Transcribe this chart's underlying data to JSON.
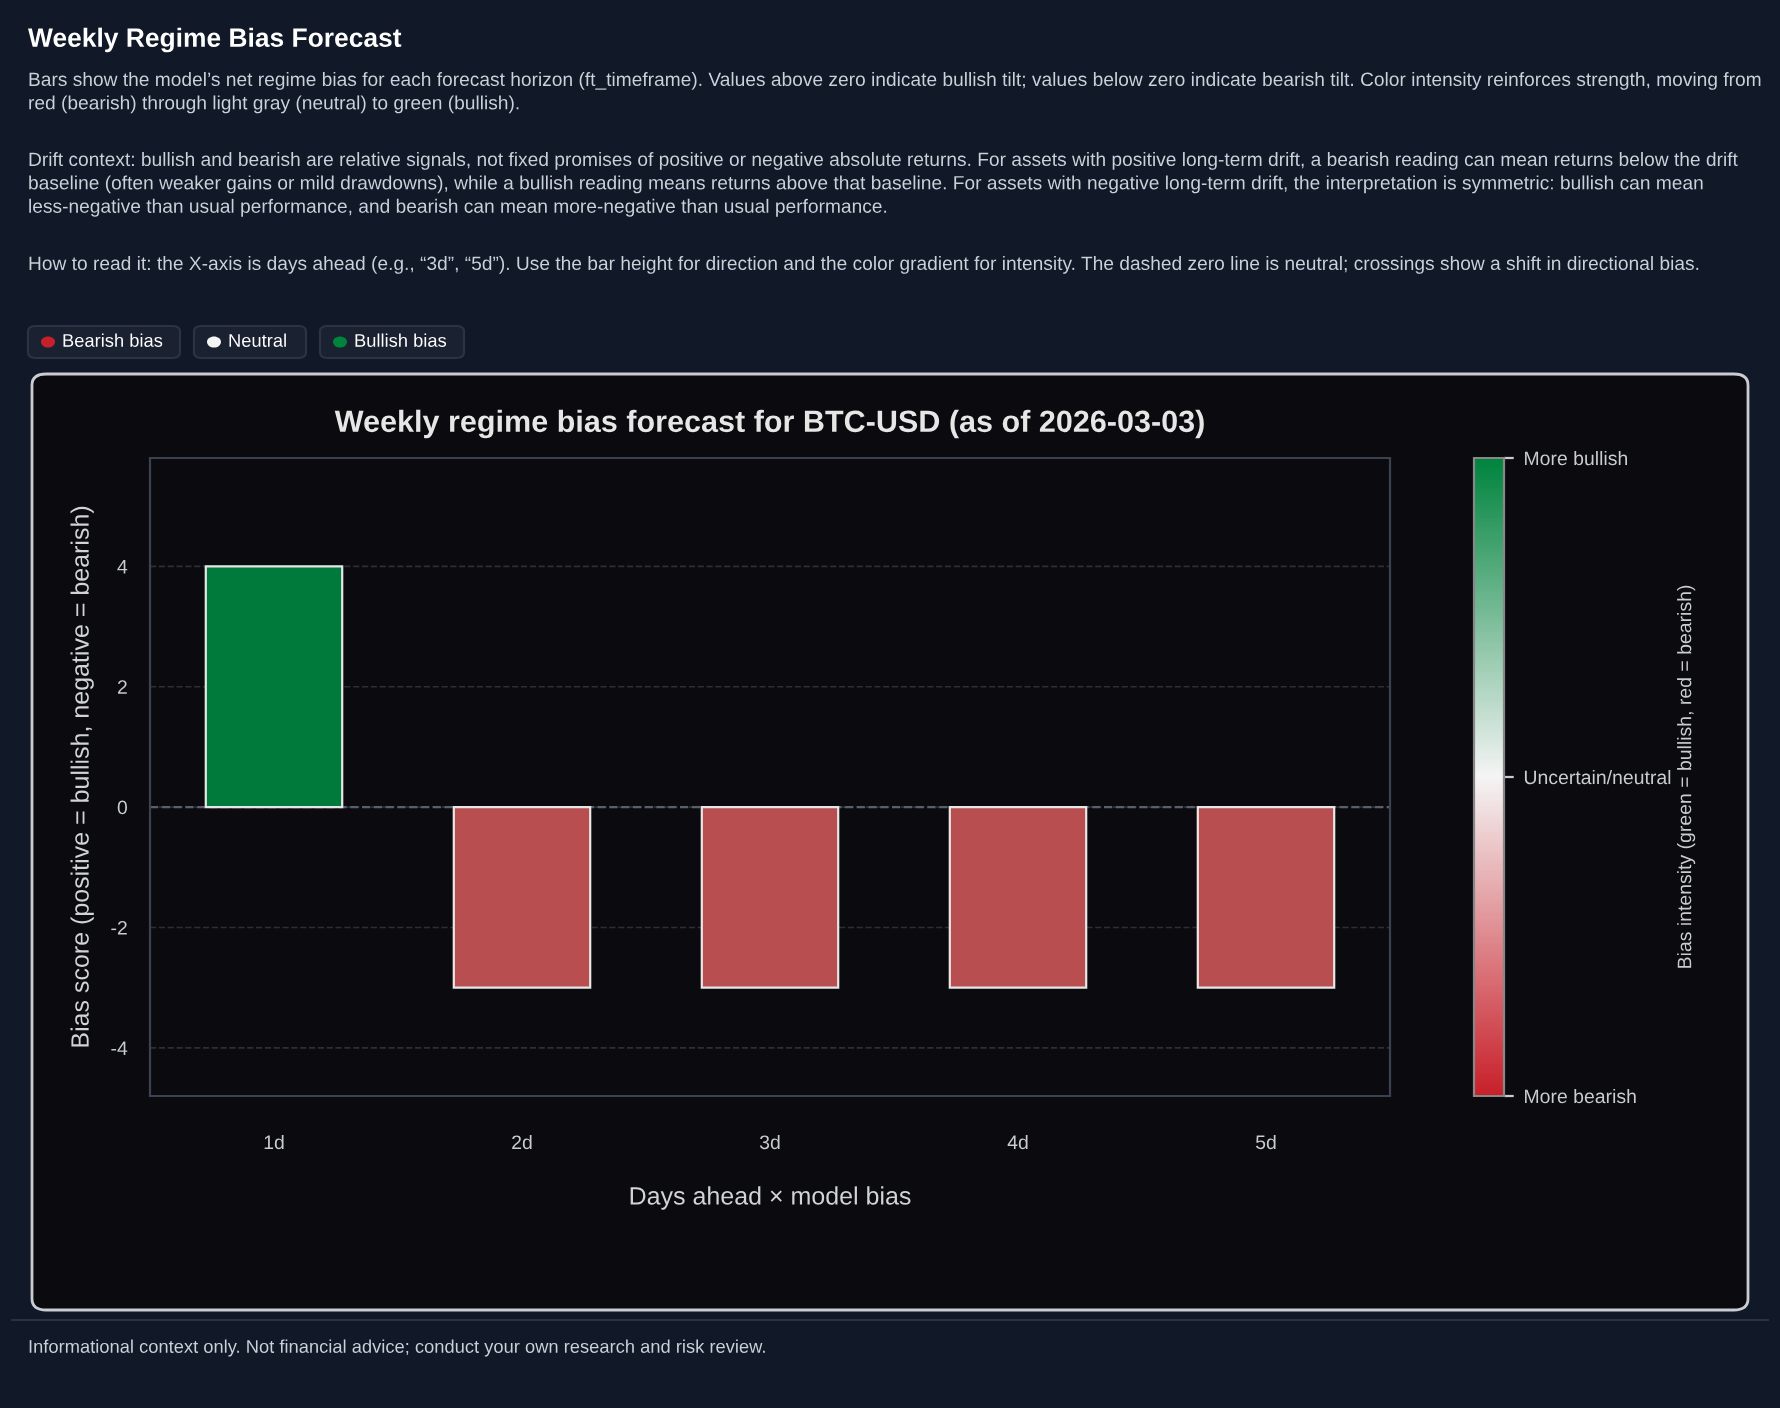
{
  "chart_data": {
    "type": "bar",
    "title": "Weekly regime bias forecast for BTC-USD (as of 2026-03-03)",
    "xlabel": "Days ahead × model bias",
    "ylabel": "Bias score (positive = bullish, negative = bearish)",
    "clabel": "Bias intensity (green = bullish, red = bearish)",
    "categories": [
      "1d",
      "2d",
      "3d",
      "4d",
      "5d"
    ],
    "values": [
      4,
      -3,
      -3,
      -3,
      -3
    ],
    "colors": [
      "#007a3a",
      "#b94e50",
      "#b94e50",
      "#b94e50",
      "#b94e50"
    ],
    "ylim": [
      -4.8,
      5.8
    ],
    "yticks": [
      -4,
      -2,
      0,
      2,
      4
    ],
    "clim": [
      -1,
      1
    ],
    "cticks": [
      {
        "value": -1,
        "label": "More bearish"
      },
      {
        "value": 0,
        "label": "Uncertain/neutral"
      },
      {
        "value": 1,
        "label": "More bullish"
      }
    ],
    "grid": "y",
    "ref_lines": [
      {
        "axis": "y",
        "value": 0,
        "label": null,
        "line_style": "dashed"
      }
    ],
    "annotations": [
      "Weekly Regime Bias Forecast",
      "Bars show the model’s net regime bias for each forecast horizon (ft_timeframe). Values above zero indicate bullish tilt; values below zero indicate bearish tilt. Color intensity reinforces strength, moving from red (bearish) through light gray (neutral) to green (bullish).",
      "Drift context: bullish and bearish are relative signals, not fixed promises of positive or negative absolute returns. For assets with positive long-term drift, a bearish reading can mean returns below the drift baseline (often weaker gains or mild drawdowns), while a bullish reading means returns above that baseline. For assets with negative long-term drift, the interpretation is symmetric: bullish can mean less-negative than usual performance, and bearish can mean more-negative than usual performance.",
      "How to read it: the X-axis is days ahead (e.g., “3d”, “5d”). Use the bar height for direction and the color gradient for intensity. The dashed zero line is neutral; crossings show a shift in directional bias.",
      "Bearish bias",
      "Neutral",
      "Bullish bias",
      "Informational context only. Not financial advice; conduct your own research and risk review."
    ]
  }
}
